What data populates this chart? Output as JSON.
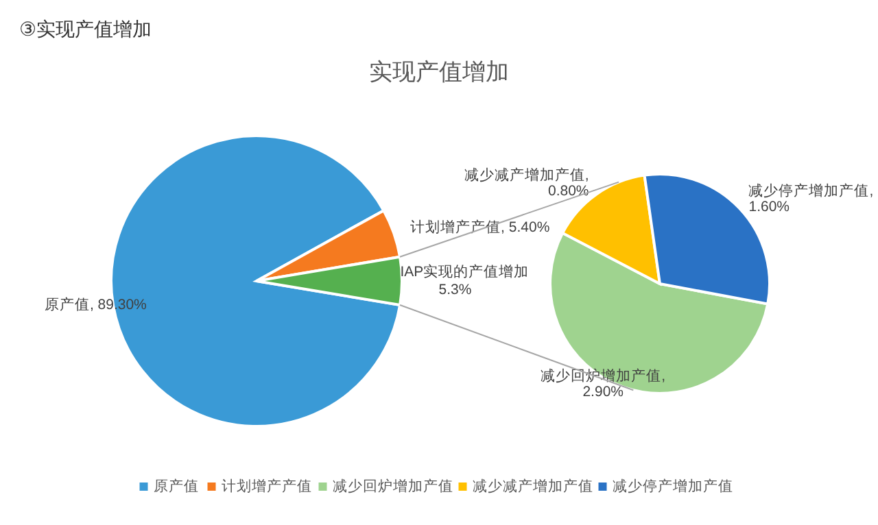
{
  "chart_data": [
    {
      "type": "pie",
      "title": "实现产值增加",
      "annotations": [
        "③实现产值增加"
      ],
      "categories": [
        "原产值",
        "计划增产产值",
        "IAP实现的产值增加"
      ],
      "values": [
        89.3,
        5.4,
        5.3
      ],
      "colors": [
        "#3a9ad6",
        "#f57a1f",
        "#55b04f"
      ],
      "value_labels": [
        "原产值, 89.30%",
        "计划增产产值, 5.40%",
        "5.3%"
      ],
      "legend": "bottom"
    },
    {
      "type": "pie",
      "categories": [
        "减少回炉增加产值",
        "减少减产增加产值",
        "减少停产增加产值"
      ],
      "values": [
        2.9,
        0.8,
        1.6
      ],
      "colors": [
        "#9fd38f",
        "#ffc000",
        "#2a72c5"
      ],
      "value_labels": [
        "减少回炉增加产值,\n2.90%",
        "减少减产增加产值,\n0.80%",
        "减少停产增加产值,\n1.60%"
      ],
      "legend": "bottom"
    }
  ]
}
